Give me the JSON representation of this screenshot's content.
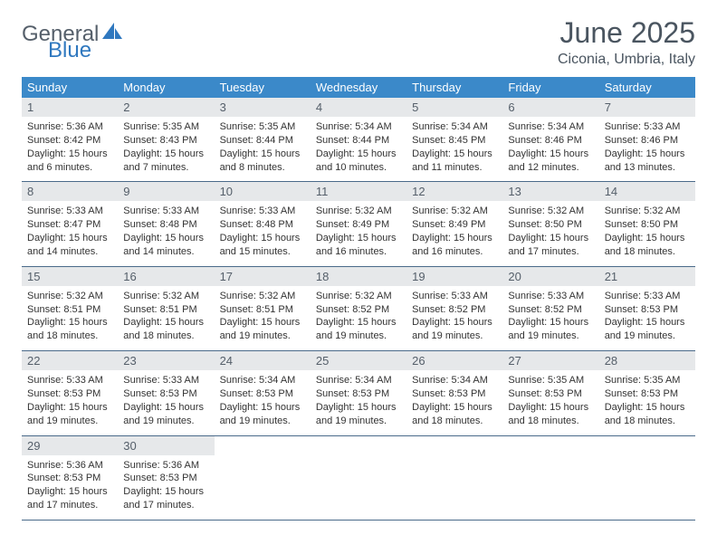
{
  "brand": {
    "word1": "General",
    "word2": "Blue"
  },
  "title": "June 2025",
  "location": "Ciconia, Umbria, Italy",
  "weekday_headers": [
    "Sunday",
    "Monday",
    "Tuesday",
    "Wednesday",
    "Thursday",
    "Friday",
    "Saturday"
  ],
  "colors": {
    "header_bg": "#3b89c9",
    "header_text": "#ffffff",
    "daynum_bg": "#e6e8ea",
    "text": "#333333",
    "rule": "#4a6a8a",
    "brand_gray": "#555f6a",
    "brand_blue": "#2f78bf"
  },
  "days": [
    {
      "n": "1",
      "sunrise": "5:36 AM",
      "sunset": "8:42 PM",
      "daylight": "15 hours and 6 minutes."
    },
    {
      "n": "2",
      "sunrise": "5:35 AM",
      "sunset": "8:43 PM",
      "daylight": "15 hours and 7 minutes."
    },
    {
      "n": "3",
      "sunrise": "5:35 AM",
      "sunset": "8:44 PM",
      "daylight": "15 hours and 8 minutes."
    },
    {
      "n": "4",
      "sunrise": "5:34 AM",
      "sunset": "8:44 PM",
      "daylight": "15 hours and 10 minutes."
    },
    {
      "n": "5",
      "sunrise": "5:34 AM",
      "sunset": "8:45 PM",
      "daylight": "15 hours and 11 minutes."
    },
    {
      "n": "6",
      "sunrise": "5:34 AM",
      "sunset": "8:46 PM",
      "daylight": "15 hours and 12 minutes."
    },
    {
      "n": "7",
      "sunrise": "5:33 AM",
      "sunset": "8:46 PM",
      "daylight": "15 hours and 13 minutes."
    },
    {
      "n": "8",
      "sunrise": "5:33 AM",
      "sunset": "8:47 PM",
      "daylight": "15 hours and 14 minutes."
    },
    {
      "n": "9",
      "sunrise": "5:33 AM",
      "sunset": "8:48 PM",
      "daylight": "15 hours and 14 minutes."
    },
    {
      "n": "10",
      "sunrise": "5:33 AM",
      "sunset": "8:48 PM",
      "daylight": "15 hours and 15 minutes."
    },
    {
      "n": "11",
      "sunrise": "5:32 AM",
      "sunset": "8:49 PM",
      "daylight": "15 hours and 16 minutes."
    },
    {
      "n": "12",
      "sunrise": "5:32 AM",
      "sunset": "8:49 PM",
      "daylight": "15 hours and 16 minutes."
    },
    {
      "n": "13",
      "sunrise": "5:32 AM",
      "sunset": "8:50 PM",
      "daylight": "15 hours and 17 minutes."
    },
    {
      "n": "14",
      "sunrise": "5:32 AM",
      "sunset": "8:50 PM",
      "daylight": "15 hours and 18 minutes."
    },
    {
      "n": "15",
      "sunrise": "5:32 AM",
      "sunset": "8:51 PM",
      "daylight": "15 hours and 18 minutes."
    },
    {
      "n": "16",
      "sunrise": "5:32 AM",
      "sunset": "8:51 PM",
      "daylight": "15 hours and 18 minutes."
    },
    {
      "n": "17",
      "sunrise": "5:32 AM",
      "sunset": "8:51 PM",
      "daylight": "15 hours and 19 minutes."
    },
    {
      "n": "18",
      "sunrise": "5:32 AM",
      "sunset": "8:52 PM",
      "daylight": "15 hours and 19 minutes."
    },
    {
      "n": "19",
      "sunrise": "5:33 AM",
      "sunset": "8:52 PM",
      "daylight": "15 hours and 19 minutes."
    },
    {
      "n": "20",
      "sunrise": "5:33 AM",
      "sunset": "8:52 PM",
      "daylight": "15 hours and 19 minutes."
    },
    {
      "n": "21",
      "sunrise": "5:33 AM",
      "sunset": "8:53 PM",
      "daylight": "15 hours and 19 minutes."
    },
    {
      "n": "22",
      "sunrise": "5:33 AM",
      "sunset": "8:53 PM",
      "daylight": "15 hours and 19 minutes."
    },
    {
      "n": "23",
      "sunrise": "5:33 AM",
      "sunset": "8:53 PM",
      "daylight": "15 hours and 19 minutes."
    },
    {
      "n": "24",
      "sunrise": "5:34 AM",
      "sunset": "8:53 PM",
      "daylight": "15 hours and 19 minutes."
    },
    {
      "n": "25",
      "sunrise": "5:34 AM",
      "sunset": "8:53 PM",
      "daylight": "15 hours and 19 minutes."
    },
    {
      "n": "26",
      "sunrise": "5:34 AM",
      "sunset": "8:53 PM",
      "daylight": "15 hours and 18 minutes."
    },
    {
      "n": "27",
      "sunrise": "5:35 AM",
      "sunset": "8:53 PM",
      "daylight": "15 hours and 18 minutes."
    },
    {
      "n": "28",
      "sunrise": "5:35 AM",
      "sunset": "8:53 PM",
      "daylight": "15 hours and 18 minutes."
    },
    {
      "n": "29",
      "sunrise": "5:36 AM",
      "sunset": "8:53 PM",
      "daylight": "15 hours and 17 minutes."
    },
    {
      "n": "30",
      "sunrise": "5:36 AM",
      "sunset": "8:53 PM",
      "daylight": "15 hours and 17 minutes."
    }
  ],
  "labels": {
    "sunrise": "Sunrise: ",
    "sunset": "Sunset: ",
    "daylight": "Daylight: "
  }
}
